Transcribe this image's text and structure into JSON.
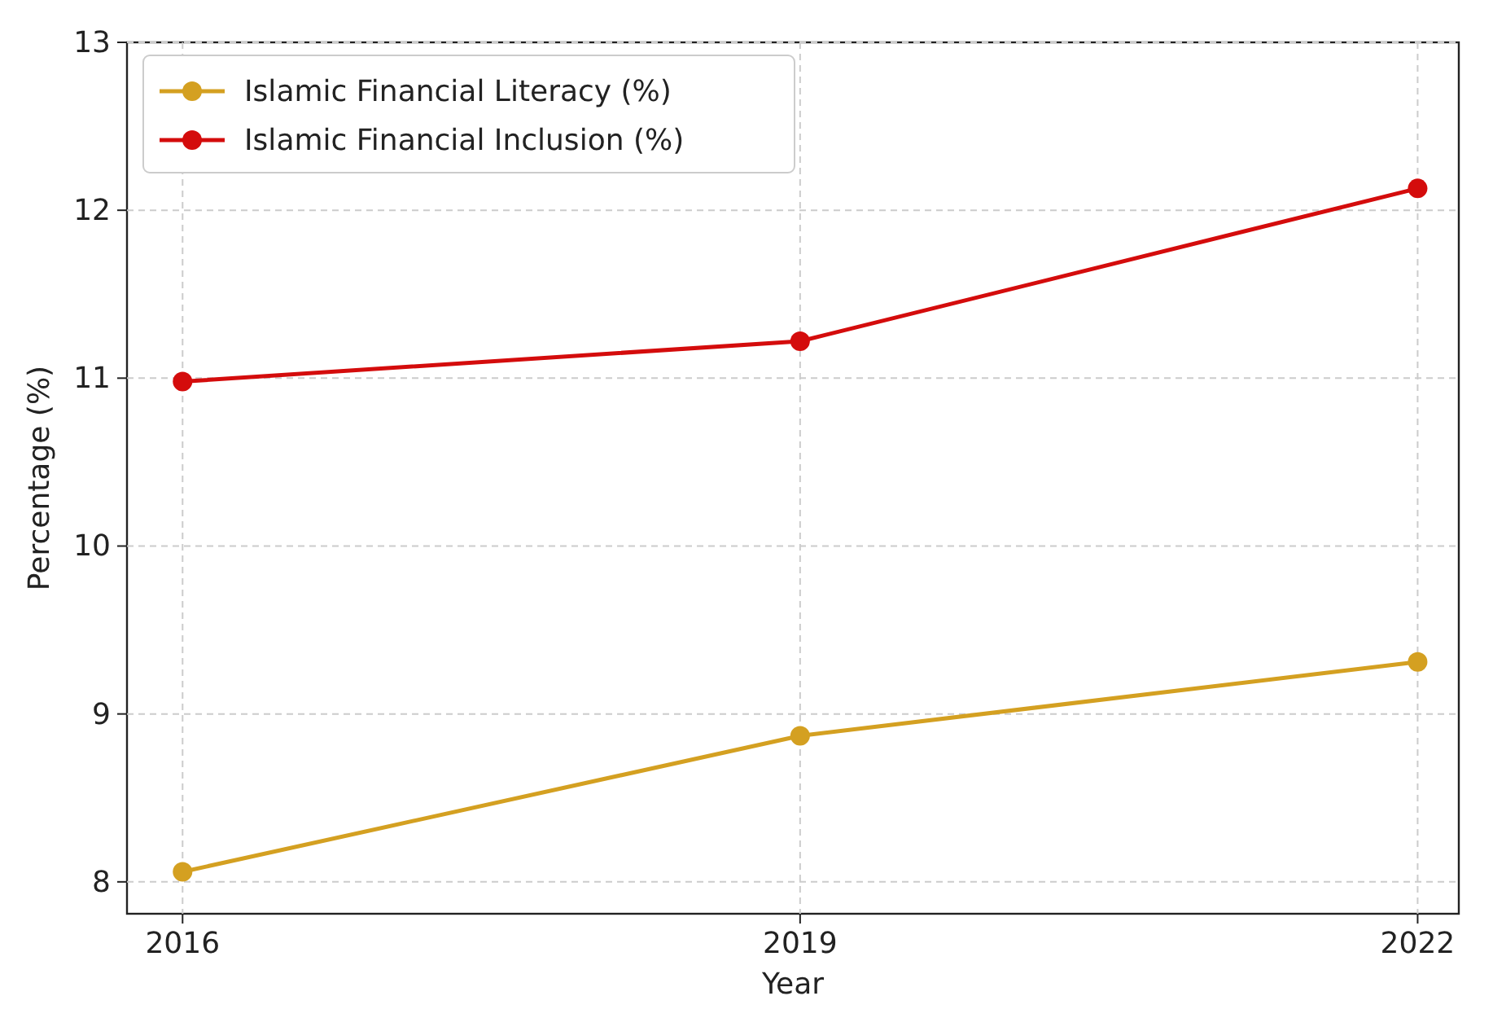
{
  "chart_data": {
    "type": "line",
    "xlabel": "Year",
    "ylabel": "Percentage (%)",
    "x": [
      2016,
      2019,
      2022
    ],
    "series": [
      {
        "name": "Islamic Financial Literacy (%)",
        "color": "#d4a021",
        "values": [
          8.06,
          8.87,
          9.31
        ]
      },
      {
        "name": "Islamic Financial Inclusion (%)",
        "color": "#d40c0c",
        "values": [
          10.98,
          11.22,
          12.13
        ]
      }
    ],
    "xlim": [
      2015.73,
      2022.2
    ],
    "xticks": [
      2016,
      2019,
      2022
    ],
    "ylim": [
      7.81,
      13.0
    ],
    "yticks": [
      8,
      9,
      10,
      11,
      12,
      13
    ],
    "grid": true,
    "legend": "top left",
    "marker": "circle",
    "line_style": "solid"
  }
}
